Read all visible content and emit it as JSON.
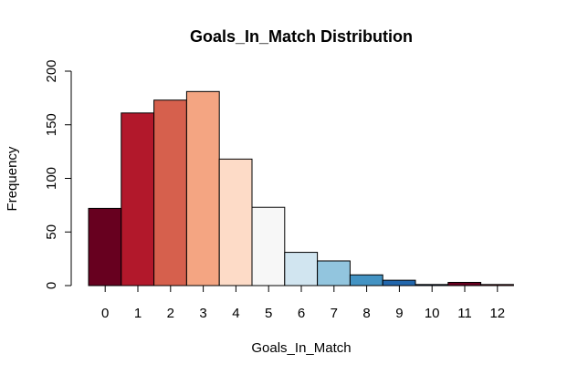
{
  "chart_data": {
    "type": "bar",
    "title": "Goals_In_Match Distribution",
    "xlabel": "Goals_In_Match",
    "ylabel": "Frequency",
    "categories": [
      "0",
      "1",
      "2",
      "3",
      "4",
      "5",
      "6",
      "7",
      "8",
      "9",
      "10",
      "11",
      "12"
    ],
    "values": [
      72,
      161,
      173,
      181,
      118,
      73,
      31,
      23,
      10,
      5,
      1,
      3,
      1
    ],
    "colors": [
      "#67001F",
      "#B2182B",
      "#D6604D",
      "#F4A582",
      "#FDDBC7",
      "#F7F7F7",
      "#D1E5F0",
      "#92C5DE",
      "#4393C3",
      "#2166AC",
      "#053061",
      "#67001F",
      "#B2182B"
    ],
    "ylim": [
      0,
      200
    ],
    "yticks": [
      0,
      50,
      100,
      150,
      200
    ],
    "grid": false,
    "legend": "none"
  }
}
